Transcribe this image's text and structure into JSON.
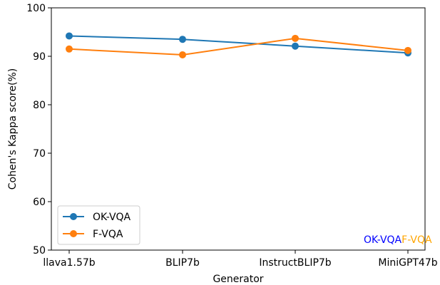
{
  "chart_data": {
    "type": "line",
    "categories": [
      "llava1.57b",
      "BLIP7b",
      "InstructBLIP7b",
      "MiniGPT47b"
    ],
    "series": [
      {
        "name": "OK-VQA",
        "values": [
          94.2,
          93.5,
          92.1,
          90.7
        ],
        "color": "#1f77b4"
      },
      {
        "name": "F-VQA",
        "values": [
          91.5,
          90.3,
          93.7,
          91.2
        ],
        "color": "#ff7f0e"
      }
    ],
    "title": "",
    "xlabel": "Generator",
    "ylabel": "Cohen's Kappa score(%)",
    "ylim": [
      50,
      100
    ],
    "yticks": [
      "50",
      "60",
      "70",
      "80",
      "90",
      "100"
    ],
    "grid": false,
    "legend": "lower-left",
    "corner_labels": [
      {
        "text": "OK-VQA",
        "color": "#0000ff"
      },
      {
        "text": "F-VQA",
        "color": "#ffa500"
      }
    ]
  }
}
